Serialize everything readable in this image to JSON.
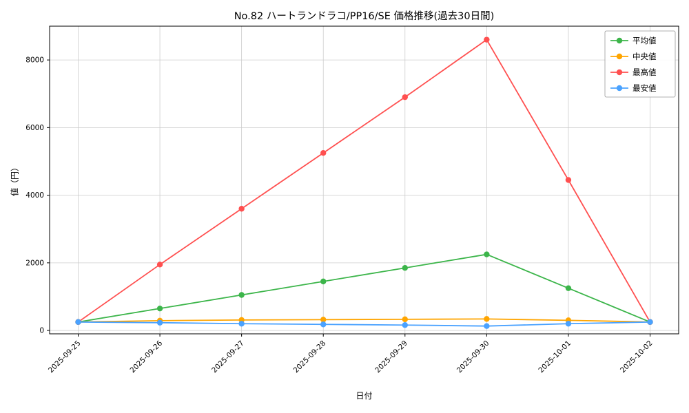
{
  "chart_data": {
    "type": "line",
    "title": "No.82 ハートランドラコ/PP16/SE 価格推移(過去30日間)",
    "xlabel": "日付",
    "ylabel": "値（円）",
    "categories": [
      "2025-09-25",
      "2025-09-26",
      "2025-09-27",
      "2025-09-28",
      "2025-09-29",
      "2025-09-30",
      "2025-10-01",
      "2025-10-02"
    ],
    "series": [
      {
        "name": "平均値",
        "color": "#3cb54a",
        "values": [
          250,
          650,
          1050,
          1450,
          1850,
          2250,
          1250,
          250
        ]
      },
      {
        "name": "中央値",
        "color": "#ffa500",
        "values": [
          250,
          290,
          310,
          320,
          330,
          340,
          300,
          250
        ]
      },
      {
        "name": "最高値",
        "color": "#ff5050",
        "values": [
          250,
          1950,
          3600,
          5250,
          6900,
          8600,
          4450,
          250
        ]
      },
      {
        "name": "最安値",
        "color": "#4aa2ff",
        "values": [
          250,
          230,
          200,
          180,
          160,
          130,
          200,
          250
        ]
      }
    ],
    "ylim": [
      -100,
      9000
    ],
    "yticks": [
      0,
      2000,
      4000,
      6000,
      8000
    ],
    "grid": true,
    "legend_position": "upper right",
    "marker": "circle",
    "background_color": "#ffffff",
    "grid_color": "#cccccc"
  }
}
